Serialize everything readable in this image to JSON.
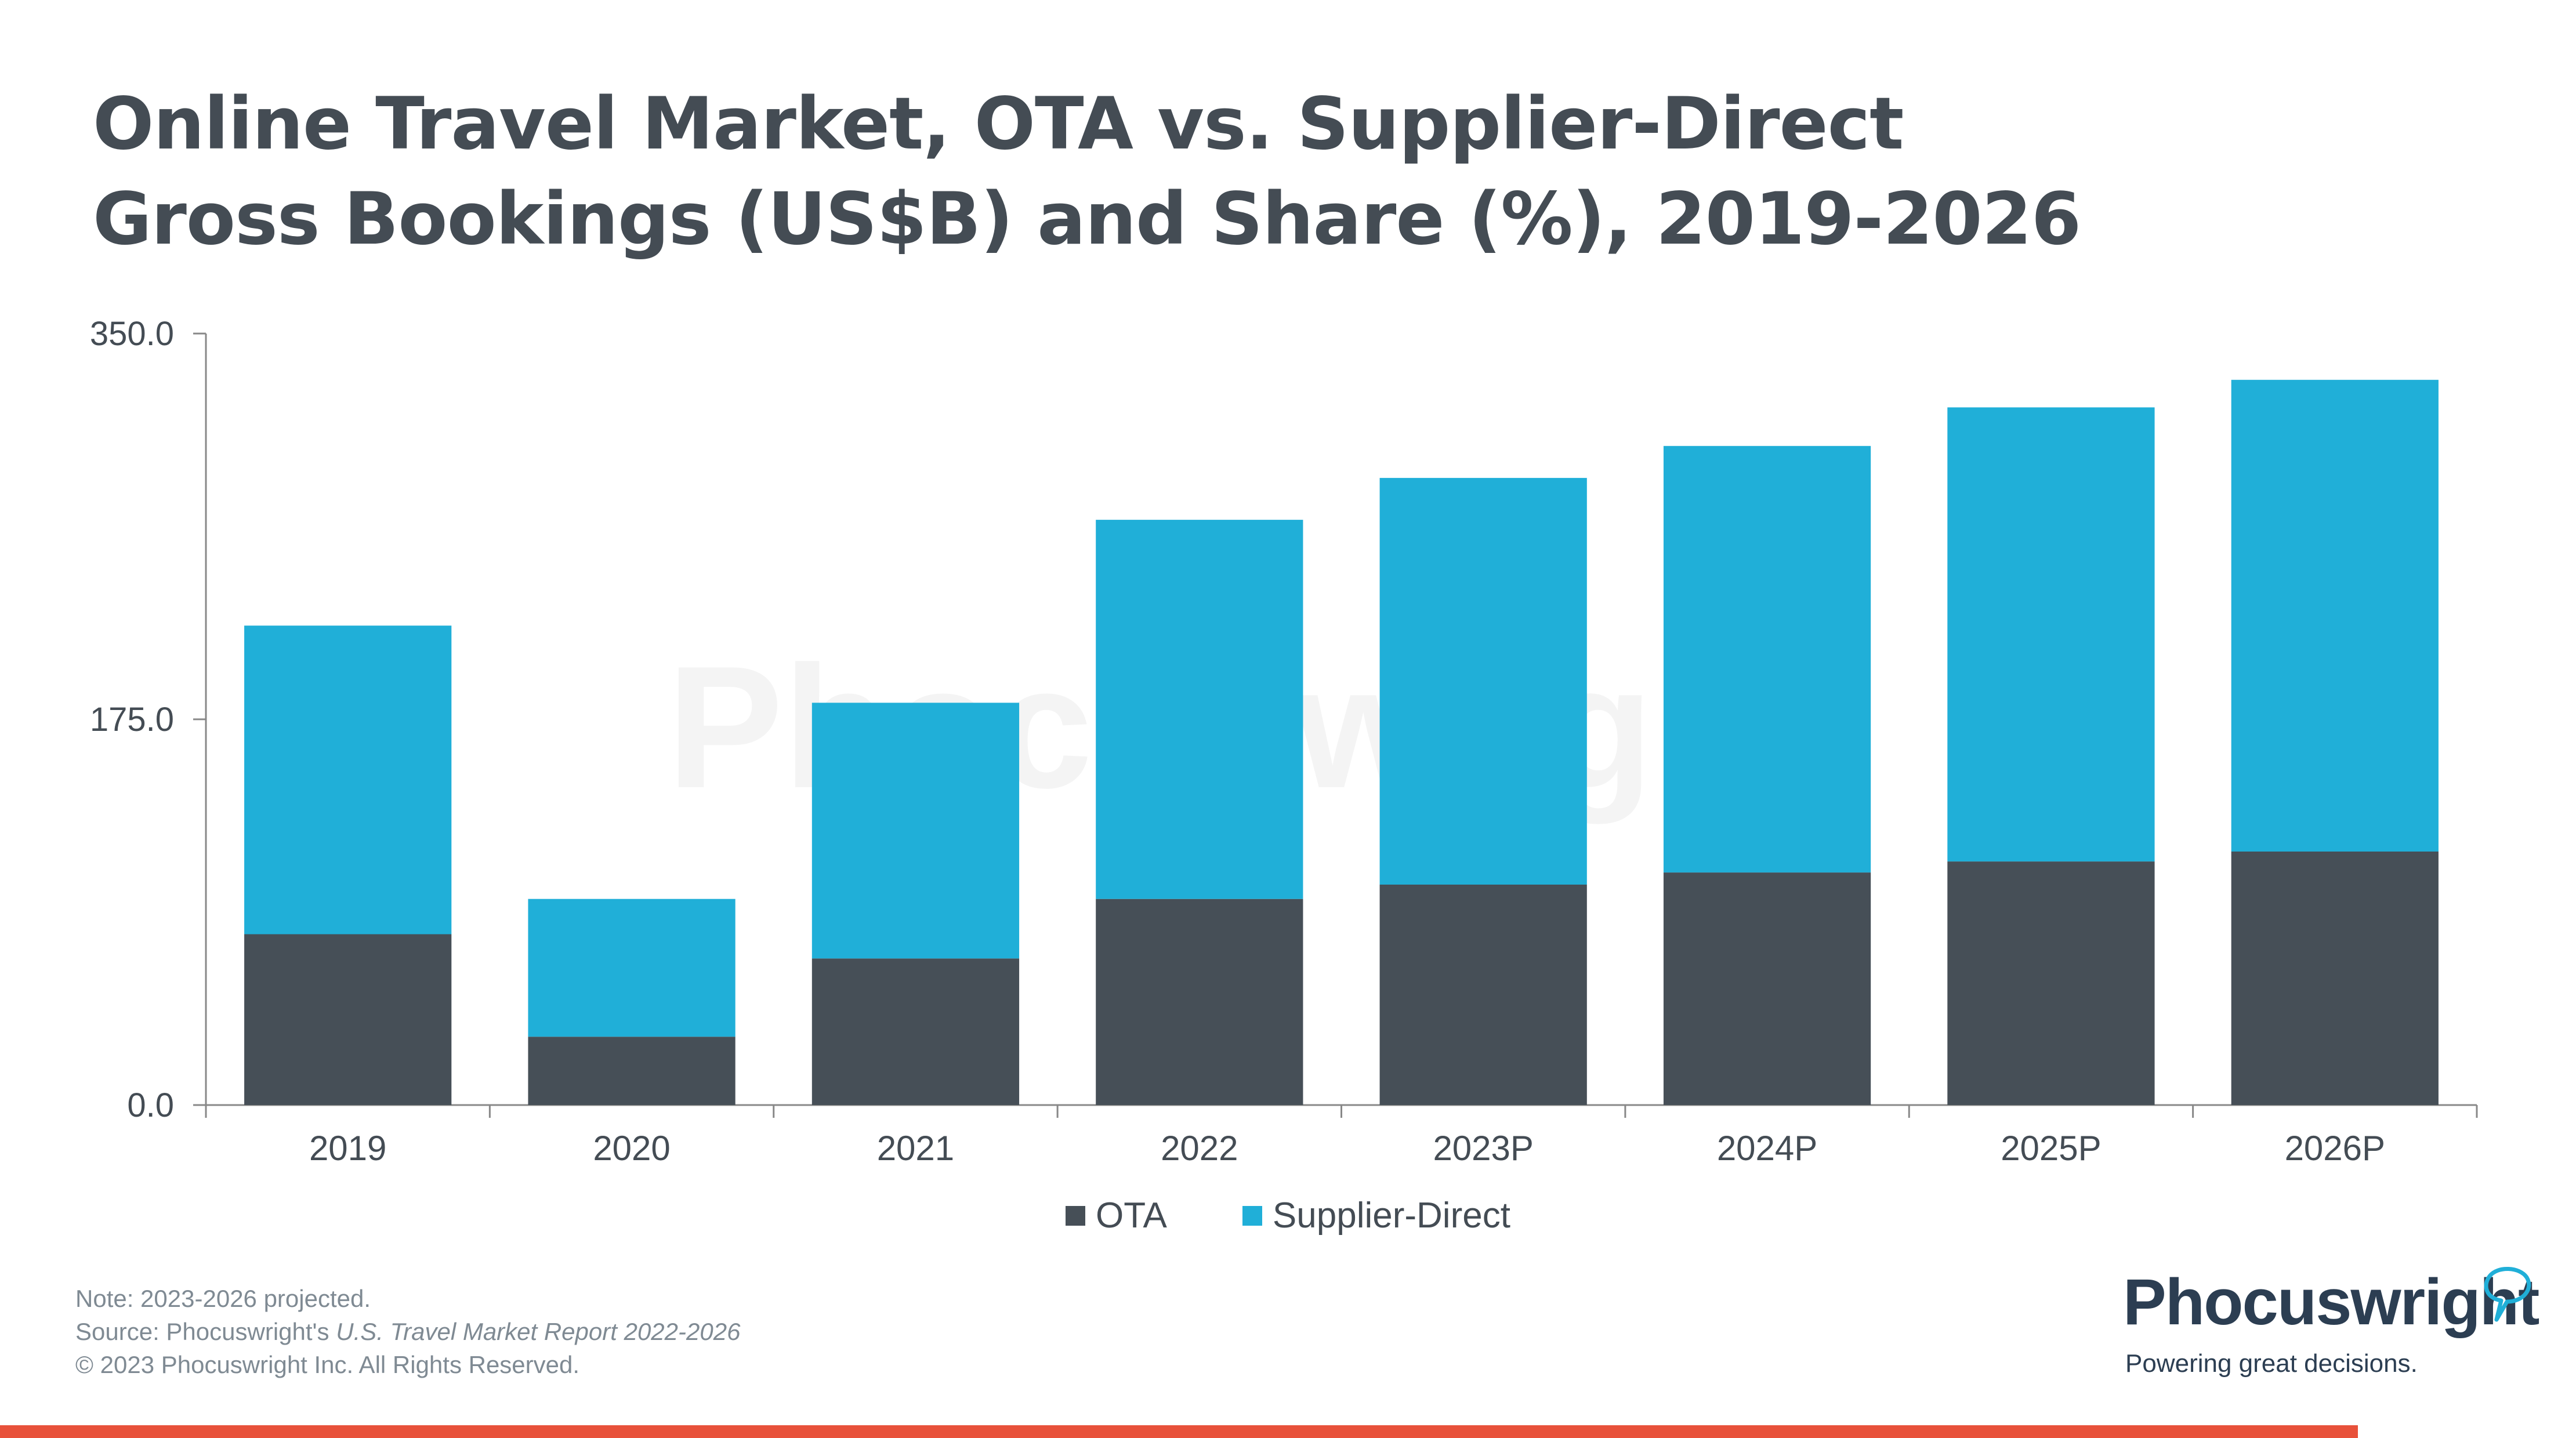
{
  "title_line1": "Online Travel Market, OTA vs. Supplier-Direct",
  "title_line2": "Gross Bookings (US$B) and Share (%), 2019-2026",
  "watermark": "Phocuswright",
  "colors": {
    "ota": "#464f57",
    "supplier_direct": "#20afd8",
    "axis": "#888888",
    "accent": "#e8513a"
  },
  "chart_data": {
    "type": "bar",
    "stacked": true,
    "categories": [
      "2019",
      "2020",
      "2021",
      "2022",
      "2023P",
      "2024P",
      "2025P",
      "2026P"
    ],
    "series": [
      {
        "name": "OTA",
        "values": [
          77.5,
          31,
          66.5,
          93.5,
          100,
          105.5,
          110.5,
          115
        ]
      },
      {
        "name": "Supplier-Direct",
        "values": [
          140,
          62.5,
          116,
          172,
          184.5,
          193.5,
          206,
          214
        ]
      }
    ],
    "ylim": [
      0,
      350
    ],
    "yticks": [
      "0.0",
      "175.0",
      "350.0"
    ],
    "xlabel": "",
    "ylabel": "",
    "legend": "bottom-center"
  },
  "legend": {
    "ota": "OTA",
    "supplier_direct": "Supplier-Direct"
  },
  "notes": {
    "note": "Note: 2023-2026 projected.",
    "source_prefix": "Source: Phocuswright's ",
    "source_title": "U.S. Travel Market Report 2022-2026",
    "copyright": "© 2023 Phocuswright Inc. All Rights Reserved."
  },
  "logo": {
    "name": "Phocuswright",
    "tagline": "Powering great decisions."
  }
}
